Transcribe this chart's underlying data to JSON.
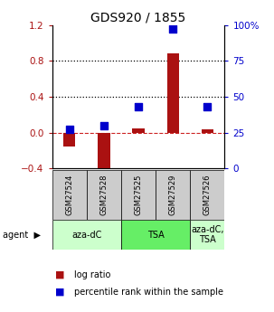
{
  "title": "GDS920 / 1855",
  "samples": [
    "GSM27524",
    "GSM27528",
    "GSM27525",
    "GSM27529",
    "GSM27526"
  ],
  "log_ratio": [
    -0.15,
    -0.42,
    0.05,
    0.88,
    0.04
  ],
  "percentile_rank": [
    27,
    30,
    43,
    97,
    43
  ],
  "left_ylim": [
    -0.4,
    1.2
  ],
  "right_ylim": [
    0,
    100
  ],
  "left_yticks": [
    -0.4,
    0.0,
    0.4,
    0.8,
    1.2
  ],
  "right_yticks": [
    0,
    25,
    50,
    75,
    100
  ],
  "right_yticklabels": [
    "0",
    "25",
    "50",
    "75",
    "100%"
  ],
  "bar_color": "#aa1111",
  "dot_color": "#0000cc",
  "dashed_zero_color": "#cc2222",
  "agent_groups": [
    {
      "label": "aza-dC",
      "span": [
        0,
        2
      ],
      "color": "#ccffcc"
    },
    {
      "label": "TSA",
      "span": [
        2,
        4
      ],
      "color": "#66ee66"
    },
    {
      "label": "aza-dC,\nTSA",
      "span": [
        4,
        5
      ],
      "color": "#ccffcc"
    }
  ],
  "legend_log_ratio": "log ratio",
  "legend_percentile": "percentile rank within the sample",
  "bg_color": "#ffffff",
  "gsm_bg_color": "#cccccc"
}
